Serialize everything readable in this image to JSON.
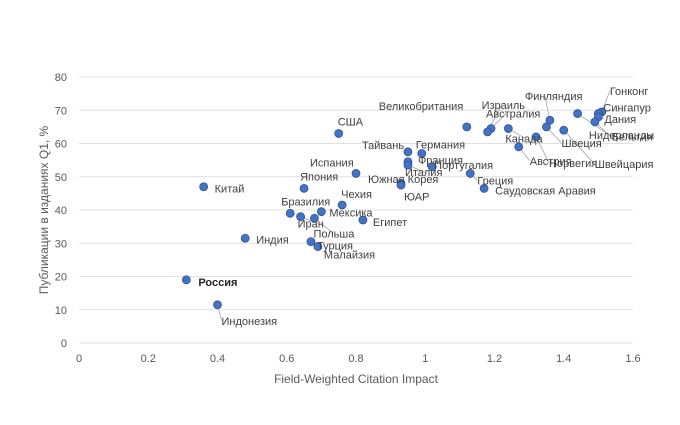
{
  "chart_data": {
    "type": "scatter",
    "xlabel": "Field-Weighted Citation Impact",
    "ylabel": "Публикации в изданиях Q1, %",
    "xlim": [
      0,
      1.6
    ],
    "ylim": [
      0,
      80
    ],
    "xticks": [
      "0",
      "0.2",
      "0.4",
      "0.6",
      "0.8",
      "1",
      "1.2",
      "1.4",
      "1.6"
    ],
    "yticks": [
      "0",
      "10",
      "20",
      "30",
      "40",
      "50",
      "60",
      "70",
      "80"
    ],
    "grid": "horizontal",
    "marker_color": "#4472c4",
    "points": [
      {
        "label": "Гонконг",
        "x": 1.51,
        "y": 69.5
      },
      {
        "label": "Сингапур",
        "x": 1.5,
        "y": 69.0
      },
      {
        "label": "Дания",
        "x": 1.5,
        "y": 68.0
      },
      {
        "label": "Нидерланды",
        "x": 1.49,
        "y": 66.5
      },
      {
        "label": "Бельгия",
        "x": 1.44,
        "y": 69.0
      },
      {
        "label": "Швейцария",
        "x": 1.4,
        "y": 64.0
      },
      {
        "label": "Финляндия",
        "x": 1.36,
        "y": 67.0
      },
      {
        "label": "Швеция",
        "x": 1.35,
        "y": 65.0
      },
      {
        "label": "Норвегия",
        "x": 1.32,
        "y": 62.0
      },
      {
        "label": "Австрия",
        "x": 1.27,
        "y": 59.0
      },
      {
        "label": "Канада",
        "x": 1.24,
        "y": 64.5
      },
      {
        "label": "Австралия",
        "x": 1.19,
        "y": 64.5
      },
      {
        "label": "Израиль",
        "x": 1.18,
        "y": 63.5
      },
      {
        "label": "Великобритания",
        "x": 1.12,
        "y": 65.0
      },
      {
        "label": "Германия",
        "x": 0.99,
        "y": 57.0
      },
      {
        "label": "Франция",
        "x": 0.95,
        "y": 54.5
      },
      {
        "label": "Италия",
        "x": 0.95,
        "y": 53.5
      },
      {
        "label": "Португалия",
        "x": 1.02,
        "y": 53.0
      },
      {
        "label": "Греция",
        "x": 1.13,
        "y": 51.0
      },
      {
        "label": "Саудовская Аравия",
        "x": 1.17,
        "y": 46.5
      },
      {
        "label": "ЮАР",
        "x": 0.93,
        "y": 48.0
      },
      {
        "label": "Южная Корея",
        "x": 0.93,
        "y": 47.5
      },
      {
        "label": "Тайвань",
        "x": 0.95,
        "y": 57.5
      },
      {
        "label": "США",
        "x": 0.75,
        "y": 63.0
      },
      {
        "label": "Испания",
        "x": 0.8,
        "y": 51.0
      },
      {
        "label": "Япония",
        "x": 0.65,
        "y": 46.5
      },
      {
        "label": "Китай",
        "x": 0.36,
        "y": 47.0
      },
      {
        "label": "Чехия",
        "x": 0.76,
        "y": 41.5
      },
      {
        "label": "Бразилия",
        "x": 0.61,
        "y": 39.0
      },
      {
        "label": "Мексика",
        "x": 0.7,
        "y": 39.5
      },
      {
        "label": "Иран",
        "x": 0.64,
        "y": 38.0
      },
      {
        "label": "Египет",
        "x": 0.82,
        "y": 37.0
      },
      {
        "label": "Польша",
        "x": 0.68,
        "y": 37.5
      },
      {
        "label": "Турция",
        "x": 0.67,
        "y": 30.5
      },
      {
        "label": "Малайзия",
        "x": 0.69,
        "y": 29.0
      },
      {
        "label": "Индия",
        "x": 0.48,
        "y": 31.5
      },
      {
        "label": "Россия",
        "x": 0.31,
        "y": 19.0,
        "bold": true
      },
      {
        "label": "Индонезия",
        "x": 0.4,
        "y": 11.5
      }
    ]
  }
}
